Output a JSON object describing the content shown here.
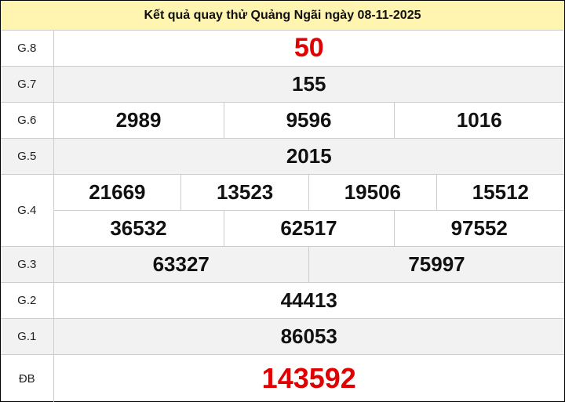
{
  "title": "Kết quả quay thử Quảng Ngãi ngày 08-11-2025",
  "colors": {
    "header_bg": "#fff4b0",
    "special_number": "#e00000",
    "alt_row": "#f2f2f2"
  },
  "prizes": [
    {
      "label": "G.8",
      "numbers": [
        "50"
      ]
    },
    {
      "label": "G.7",
      "numbers": [
        "155"
      ]
    },
    {
      "label": "G.6",
      "numbers": [
        "2989",
        "9596",
        "1016"
      ]
    },
    {
      "label": "G.5",
      "numbers": [
        "2015"
      ]
    },
    {
      "label": "G.4",
      "numbers": [
        "21669",
        "13523",
        "19506",
        "15512",
        "36532",
        "62517",
        "97552"
      ]
    },
    {
      "label": "G.3",
      "numbers": [
        "63327",
        "75997"
      ]
    },
    {
      "label": "G.2",
      "numbers": [
        "44413"
      ]
    },
    {
      "label": "G.1",
      "numbers": [
        "86053"
      ]
    },
    {
      "label": "ĐB",
      "numbers": [
        "143592"
      ]
    }
  ]
}
